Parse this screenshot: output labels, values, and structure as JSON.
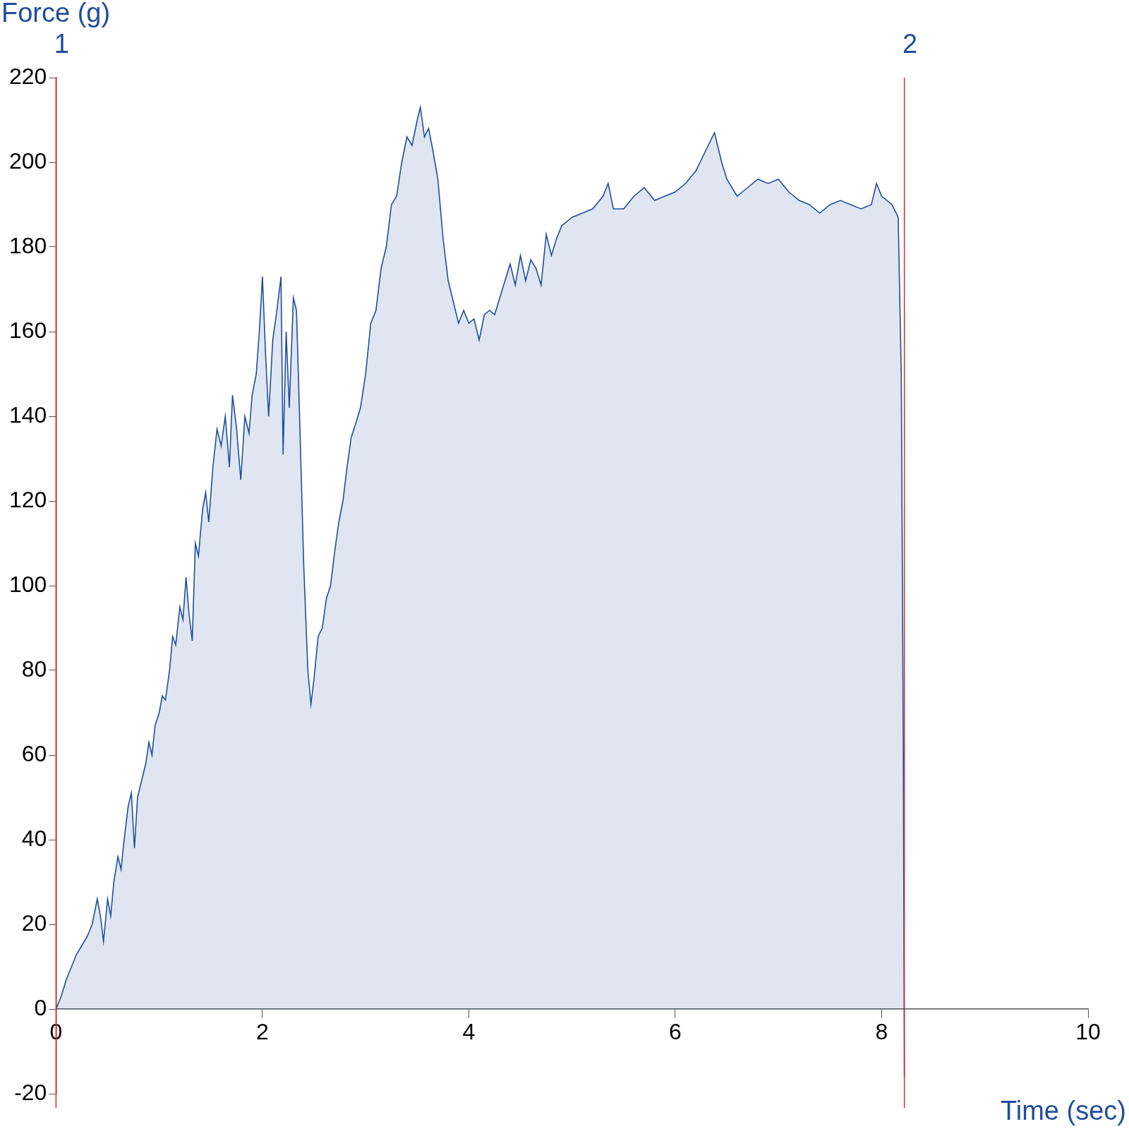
{
  "chart_data": {
    "type": "area",
    "x_label": "Time (sec)",
    "y_label": "Force (g)",
    "x": [
      0,
      0.05,
      0.1,
      0.15,
      0.2,
      0.25,
      0.3,
      0.35,
      0.4,
      0.43,
      0.46,
      0.5,
      0.53,
      0.56,
      0.6,
      0.63,
      0.66,
      0.7,
      0.73,
      0.76,
      0.79,
      0.83,
      0.87,
      0.9,
      0.93,
      0.96,
      1.0,
      1.03,
      1.06,
      1.1,
      1.13,
      1.16,
      1.2,
      1.23,
      1.26,
      1.29,
      1.32,
      1.35,
      1.38,
      1.42,
      1.45,
      1.48,
      1.52,
      1.56,
      1.6,
      1.64,
      1.68,
      1.71,
      1.75,
      1.79,
      1.83,
      1.87,
      1.9,
      1.94,
      1.97,
      2.0,
      2.03,
      2.06,
      2.1,
      2.14,
      2.18,
      2.2,
      2.23,
      2.26,
      2.3,
      2.33,
      2.36,
      2.4,
      2.44,
      2.47,
      2.5,
      2.54,
      2.58,
      2.62,
      2.66,
      2.7,
      2.74,
      2.78,
      2.82,
      2.86,
      2.9,
      2.95,
      3.0,
      3.05,
      3.1,
      3.15,
      3.2,
      3.25,
      3.3,
      3.35,
      3.4,
      3.45,
      3.5,
      3.53,
      3.57,
      3.61,
      3.65,
      3.7,
      3.75,
      3.8,
      3.85,
      3.9,
      3.95,
      4.0,
      4.05,
      4.1,
      4.15,
      4.2,
      4.25,
      4.3,
      4.35,
      4.4,
      4.45,
      4.5,
      4.55,
      4.6,
      4.65,
      4.7,
      4.75,
      4.8,
      4.85,
      4.9,
      5.0,
      5.1,
      5.2,
      5.3,
      5.35,
      5.4,
      5.5,
      5.6,
      5.7,
      5.8,
      5.9,
      6.0,
      6.1,
      6.2,
      6.3,
      6.38,
      6.45,
      6.5,
      6.6,
      6.7,
      6.8,
      6.9,
      7.0,
      7.1,
      7.2,
      7.3,
      7.4,
      7.5,
      7.6,
      7.7,
      7.8,
      7.9,
      7.95,
      8.0,
      8.1,
      8.16,
      8.19,
      8.21,
      8.22
    ],
    "values": [
      0,
      3,
      7,
      10,
      13,
      15,
      17,
      20,
      26,
      22,
      16,
      26,
      22,
      30,
      36,
      33,
      40,
      48,
      51,
      38,
      50,
      54,
      58,
      63,
      60,
      67,
      70,
      74,
      73,
      80,
      88,
      86,
      95,
      92,
      102,
      93,
      87,
      110,
      107,
      118,
      122,
      115,
      128,
      137,
      133,
      140,
      128,
      145,
      137,
      125,
      140,
      136,
      145,
      150,
      160,
      173,
      155,
      140,
      158,
      165,
      173,
      131,
      160,
      142,
      168,
      165,
      140,
      105,
      80,
      72,
      78,
      88,
      90,
      97,
      100,
      108,
      115,
      120,
      128,
      135,
      138,
      142,
      150,
      162,
      165,
      175,
      180,
      190,
      192,
      200,
      206,
      204,
      210,
      213,
      206,
      208,
      203,
      196,
      182,
      172,
      167,
      162,
      165,
      162,
      163,
      158,
      164,
      165,
      164,
      168,
      172,
      176,
      171,
      178,
      172,
      177,
      175,
      171,
      183,
      178,
      182,
      185,
      187,
      188,
      189,
      192,
      195,
      189,
      189,
      192,
      194,
      191,
      192,
      193,
      195,
      198,
      203,
      207,
      200,
      196,
      192,
      194,
      196,
      195,
      196,
      193,
      191,
      190,
      188,
      190,
      191,
      190,
      189,
      190,
      195,
      192,
      190,
      187,
      150,
      60,
      -16
    ],
    "color": "#1f4e9c",
    "xlim": [
      0,
      10
    ],
    "xticks": [
      0,
      2,
      4,
      6,
      8,
      10
    ],
    "ylim": [
      -20,
      220
    ],
    "yticks": [
      -20,
      0,
      20,
      40,
      60,
      80,
      100,
      120,
      140,
      160,
      180,
      200,
      220
    ],
    "grid": false,
    "annotations": [
      {
        "x": 0,
        "label": "1"
      },
      {
        "x": 8.22,
        "label": "2"
      }
    ]
  }
}
